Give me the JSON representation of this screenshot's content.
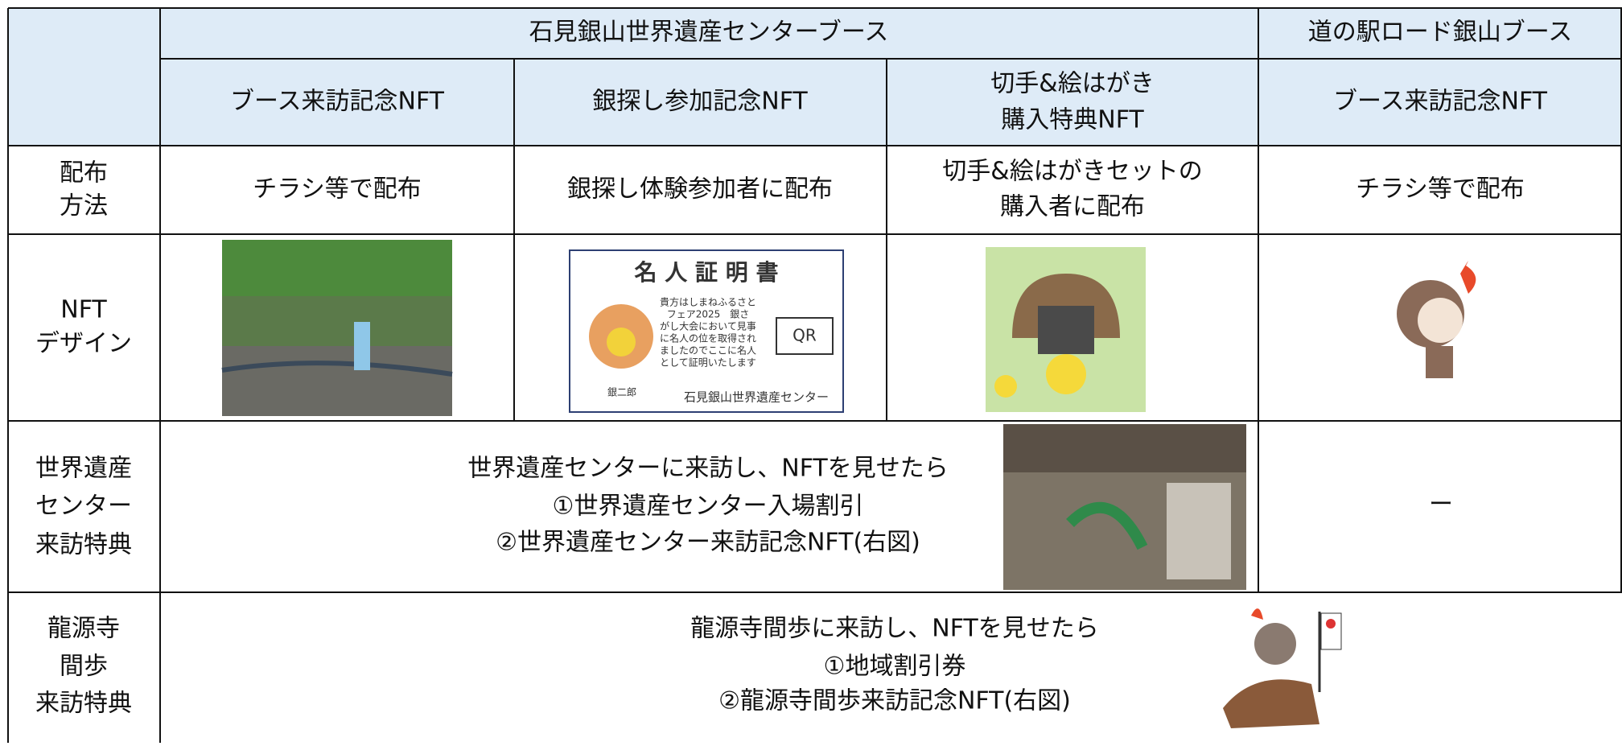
{
  "table": {
    "header": {
      "group1": "石見銀山世界遺産センターブース",
      "group2": "道の駅ロード銀山ブース",
      "columns": [
        [
          "ブース来訪記念NFT"
        ],
        [
          "銀探し参加記念NFT"
        ],
        [
          "切手&絵はがき",
          "購入特典NFT"
        ],
        [
          "ブース来訪記念NFT"
        ]
      ]
    },
    "rows": [
      {
        "label": [
          "配布",
          "方法"
        ],
        "cells": [
          [
            "チラシ等で配布"
          ],
          [
            "銀探し体験参加者に配布"
          ],
          [
            "切手&絵はがきセットの",
            "購入者に配布"
          ],
          [
            "チラシ等で配布"
          ]
        ]
      },
      {
        "label": [
          "NFT",
          "デザイン"
        ]
      },
      {
        "label": [
          "世界遺産",
          "センター",
          "来訪特典"
        ],
        "text": [
          "世界遺産センターに来訪し、NFTを見せたら",
          "①世界遺産センター入場割引",
          "②世界遺産センター来訪記念NFT(右図)"
        ],
        "other": "ー"
      },
      {
        "label": [
          "龍源寺",
          "間歩",
          "来訪特典"
        ],
        "text": [
          "龍源寺間歩に来訪し、NFTを見せたら",
          "①地域割引券",
          "②龍源寺間歩来訪記念NFT(右図)"
        ]
      }
    ]
  },
  "certificate": {
    "title": "名 人 証 明 書",
    "body": [
      "貴方はしまねふるさと",
      "フェア2025　銀さ",
      "がし大会において見事",
      "に名人の位を取得され",
      "ましたのでここに名人",
      "として証明いたします"
    ],
    "qr": "QR",
    "name": "銀二郎",
    "issuer": "石見銀山世界遺産センター"
  }
}
